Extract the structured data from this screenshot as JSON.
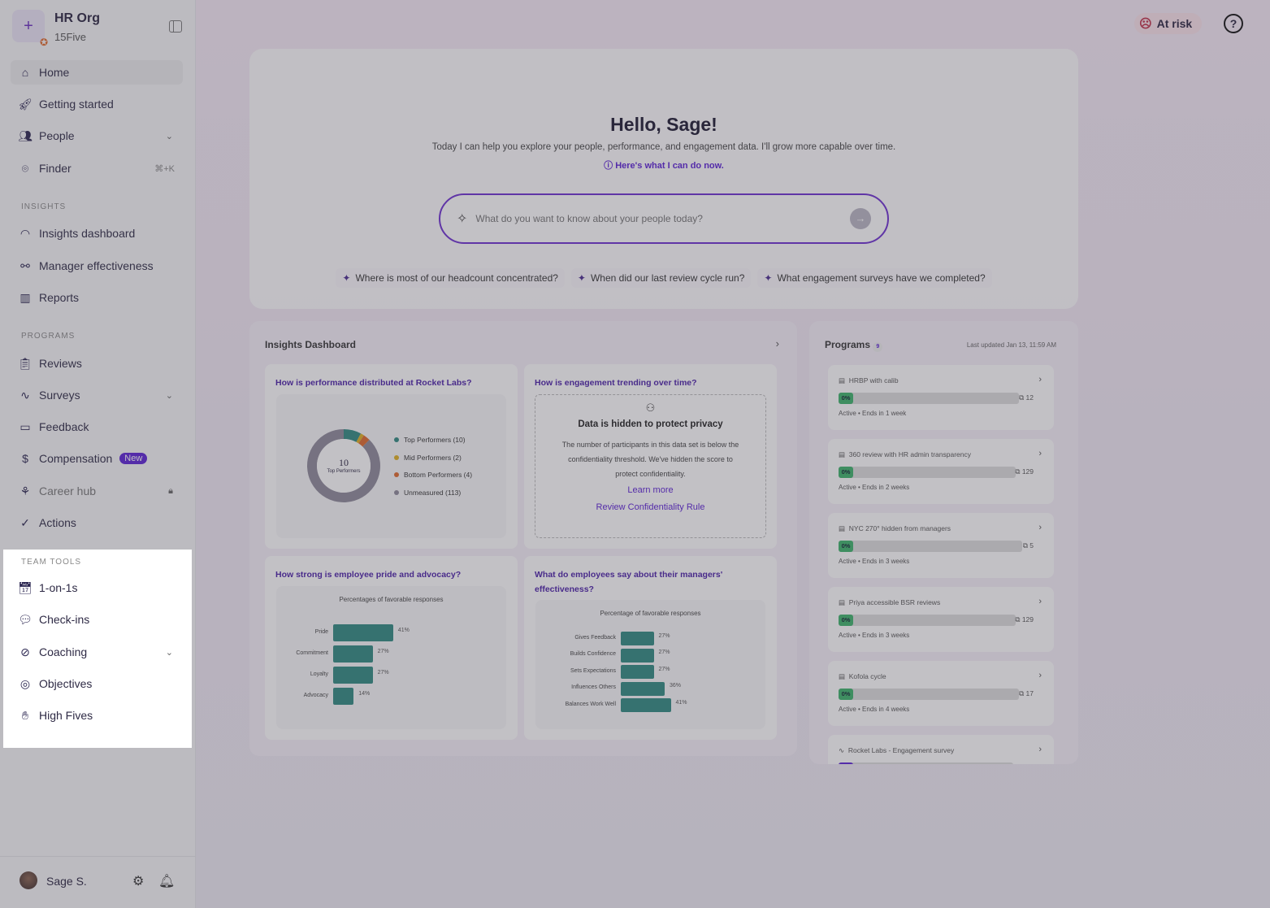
{
  "sidebar": {
    "org_name": "HR Org",
    "org_sub": "15Five",
    "items": [
      {
        "label": "Home",
        "icon": "home-icon"
      },
      {
        "label": "Getting started",
        "icon": "rocket-icon"
      },
      {
        "label": "People",
        "icon": "people-icon"
      },
      {
        "label": "Finder",
        "icon": "finder-icon",
        "shortcut": "⌘+K"
      }
    ],
    "insights_label": "INSIGHTS",
    "insights": [
      {
        "label": "Insights dashboard"
      },
      {
        "label": "Manager effectiveness"
      },
      {
        "label": "Reports"
      }
    ],
    "programs_label": "PROGRAMS",
    "programs": [
      {
        "label": "Reviews"
      },
      {
        "label": "Surveys"
      },
      {
        "label": "Feedback"
      },
      {
        "label": "Compensation",
        "badge": "New"
      },
      {
        "label": "Career hub"
      },
      {
        "label": "Actions"
      }
    ],
    "team_tools_label": "TEAM TOOLS",
    "team_tools": [
      {
        "label": "1-on-1s"
      },
      {
        "label": "Check-ins"
      },
      {
        "label": "Coaching"
      },
      {
        "label": "Objectives"
      },
      {
        "label": "High Fives"
      }
    ],
    "user": "Sage S."
  },
  "header": {
    "at_risk": "At risk",
    "help": "?"
  },
  "hero": {
    "greeting": "Hello, Sage!",
    "subtitle": "Today I can help you explore your people, performance, and engagement data. I'll grow more capable over time.",
    "link": "Here's what I can do now.",
    "placeholder": "What do you want to know about your people today?",
    "suggestions": [
      "Where is most of our headcount concentrated?",
      "When did our last review cycle run?",
      "What engagement surveys have we completed?"
    ]
  },
  "insights": {
    "title": "Insights Dashboard",
    "perf": {
      "question": "How is performance distributed at Rocket Labs?",
      "center_value": "10",
      "center_label": "Top Performers"
    },
    "engagement": {
      "question": "How is engagement trending over time?",
      "hidden_title": "Data is hidden to protect privacy",
      "hidden_text": "The number of participants in this data set is below the confidentiality threshold. We've hidden the score to protect confidentiality.",
      "learn_more": "Learn more",
      "review_rule": "Review Confidentiality Rule"
    },
    "pride": {
      "question": "How strong is employee pride and advocacy?"
    },
    "managers": {
      "question": "What do employees say about their managers' effectiveness?"
    }
  },
  "chart_data": [
    {
      "type": "pie",
      "title": "",
      "categories": [
        "Top Performers (10)",
        "Mid Performers (2)",
        "Bottom Performers (4)",
        "Unmeasured (113)"
      ],
      "values": [
        10,
        2,
        4,
        113
      ],
      "colors": [
        "#2f8a80",
        "#e0b020",
        "#e0692a",
        "#8e8a9a"
      ]
    },
    {
      "type": "bar",
      "orientation": "horizontal",
      "title": "Percentages of favorable responses",
      "categories": [
        "Pride",
        "Commitment",
        "Loyalty",
        "Advocacy"
      ],
      "values": [
        41,
        27,
        27,
        14
      ],
      "unit": "%"
    },
    {
      "type": "bar",
      "orientation": "horizontal",
      "title": "Percentage of favorable responses",
      "categories": [
        "Gives Feedback",
        "Builds Confidence",
        "Sets Expectations",
        "Influences Others",
        "Balances Work Well"
      ],
      "values": [
        27,
        27,
        27,
        36,
        41
      ],
      "unit": "%"
    }
  ],
  "programs": {
    "title": "Programs",
    "badge": "9",
    "updated": "Last updated Jan 13, 11:59 AM",
    "items": [
      {
        "name": "HRBP with calib",
        "progress": "0%",
        "count": "12",
        "status": "Active • Ends in 1 week"
      },
      {
        "name": "360 review with HR admin transparency",
        "progress": "0%",
        "count": "129",
        "status": "Active • Ends in 2 weeks"
      },
      {
        "name": "NYC 270° hidden from managers",
        "progress": "0%",
        "count": "5",
        "status": "Active • Ends in 3 weeks"
      },
      {
        "name": "Priya accessible BSR reviews",
        "progress": "0%",
        "count": "129",
        "status": "Active • Ends in 3 weeks"
      },
      {
        "name": "Kofola cycle",
        "progress": "0%",
        "count": "17",
        "status": "Active • Ends in 4 weeks"
      },
      {
        "name": "Rocket Labs - Engagement survey",
        "progress": "",
        "count": "",
        "status": ""
      }
    ]
  },
  "colors": {
    "accent": "#5b21d6",
    "bar": "#2f8a80",
    "progress": "#3db36a"
  }
}
